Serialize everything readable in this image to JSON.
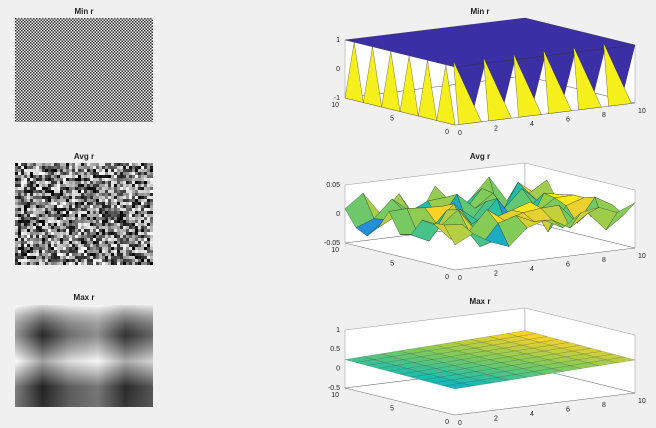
{
  "panels": [
    {
      "title": "Min r",
      "zticks": [
        "1",
        "0",
        "-1"
      ],
      "yticks": [
        "10",
        "5",
        "0"
      ],
      "xticks": [
        "0",
        "2",
        "4",
        "6",
        "8",
        "10"
      ]
    },
    {
      "title": "Avg r",
      "zticks": [
        "0.05",
        "0",
        "-0.05"
      ],
      "yticks": [
        "10",
        "5",
        "0"
      ],
      "xticks": [
        "0",
        "2",
        "4",
        "6",
        "8",
        "10"
      ]
    },
    {
      "title": "Max r",
      "zticks": [
        "1",
        "0.5",
        "0",
        "-0.5"
      ],
      "yticks": [
        "10",
        "5",
        "0"
      ],
      "xticks": [
        "0",
        "2",
        "4",
        "6",
        "8",
        "10"
      ]
    }
  ]
}
